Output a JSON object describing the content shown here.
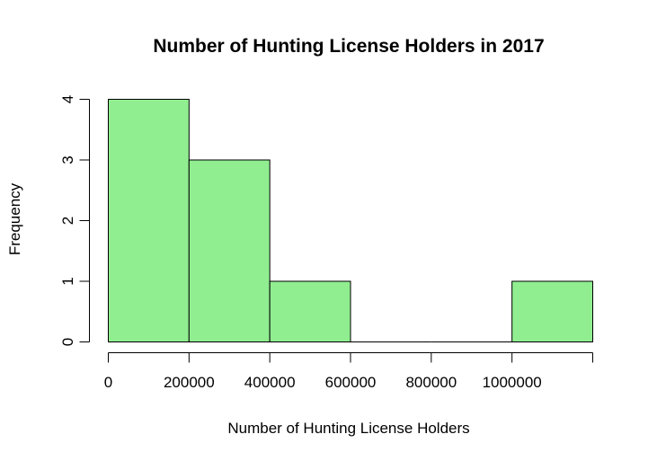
{
  "chart_data": {
    "type": "bar",
    "subtype": "histogram",
    "title": "Number of Hunting License Holders in 2017",
    "xlabel": "Number of Hunting License Holders",
    "ylabel": "Frequency",
    "bins": [
      {
        "start": 0,
        "end": 200000,
        "count": 4
      },
      {
        "start": 200000,
        "end": 400000,
        "count": 3
      },
      {
        "start": 400000,
        "end": 600000,
        "count": 1
      },
      {
        "start": 600000,
        "end": 800000,
        "count": 0
      },
      {
        "start": 800000,
        "end": 1000000,
        "count": 0
      },
      {
        "start": 1000000,
        "end": 1200000,
        "count": 1
      }
    ],
    "xlim": [
      0,
      1200000
    ],
    "ylim": [
      0,
      4
    ],
    "x_ticks": [
      0,
      200000,
      400000,
      600000,
      800000,
      1000000,
      1200000
    ],
    "x_tick_labels": [
      "0",
      "200000",
      "400000",
      "600000",
      "800000",
      "1000000",
      ""
    ],
    "y_ticks": [
      0,
      1,
      2,
      3,
      4
    ],
    "y_tick_labels": [
      "0",
      "1",
      "2",
      "3",
      "4"
    ],
    "bar_color": "#90EE90",
    "border_color": "#000000",
    "grid": false,
    "legend": "none"
  }
}
